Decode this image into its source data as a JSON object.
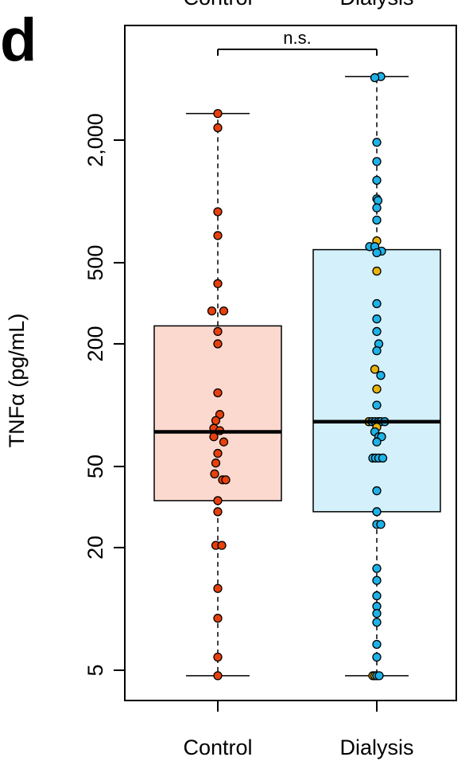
{
  "panel_label": "d",
  "top_labels": [
    "Control",
    "Dialysis"
  ],
  "colors": {
    "control_point": "#e8400c",
    "dialysis_point": "#1eb2e8",
    "dialysis_highlight": "#e8b40c",
    "control_box": "#fcd9cf",
    "dialysis_box": "#d3f0fb"
  },
  "chart_data": {
    "type": "box",
    "scale": "log",
    "ylabel": "TNFα (pg/mL)",
    "ylim": [
      3.8,
      5500
    ],
    "yticks": [
      5,
      20,
      50,
      200,
      500,
      2000
    ],
    "ytick_labels": [
      "5",
      "20",
      "50",
      "200",
      "500",
      "2,000"
    ],
    "categories": [
      "Control",
      "Dialysis"
    ],
    "significance": {
      "between": [
        "Control",
        "Dialysis"
      ],
      "label": "n.s."
    },
    "grid": false,
    "boxes": [
      {
        "name": "Control",
        "whisker_low": 4.7,
        "q1": 34,
        "median": 74,
        "q3": 245,
        "whisker_high": 2700
      },
      {
        "name": "Dialysis",
        "whisker_low": 4.7,
        "q1": 30,
        "median": 83,
        "q3": 580,
        "whisker_high": 4100
      }
    ],
    "points": {
      "Control": [
        {
          "y": 2700,
          "dx": 0
        },
        {
          "y": 2300,
          "dx": 0
        },
        {
          "y": 890,
          "dx": 0
        },
        {
          "y": 680,
          "dx": 0
        },
        {
          "y": 395,
          "dx": 0
        },
        {
          "y": 290,
          "dx": -0.15
        },
        {
          "y": 290,
          "dx": 0.15
        },
        {
          "y": 230,
          "dx": 0
        },
        {
          "y": 200,
          "dx": 0
        },
        {
          "y": 115,
          "dx": 0
        },
        {
          "y": 90,
          "dx": 0.05
        },
        {
          "y": 84,
          "dx": -0.05
        },
        {
          "y": 77,
          "dx": -0.1
        },
        {
          "y": 75,
          "dx": 0.05
        },
        {
          "y": 70,
          "dx": -0.1
        },
        {
          "y": 66,
          "dx": 0.15
        },
        {
          "y": 58,
          "dx": 0
        },
        {
          "y": 52,
          "dx": -0.05
        },
        {
          "y": 46,
          "dx": -0.08
        },
        {
          "y": 43,
          "dx": 0.12
        },
        {
          "y": 43,
          "dx": 0.2
        },
        {
          "y": 34,
          "dx": 0
        },
        {
          "y": 30,
          "dx": 0
        },
        {
          "y": 20.5,
          "dx": -0.05
        },
        {
          "y": 20.5,
          "dx": 0.1
        },
        {
          "y": 12.6,
          "dx": 0
        },
        {
          "y": 9.0,
          "dx": 0
        },
        {
          "y": 5.8,
          "dx": 0
        },
        {
          "y": 4.7,
          "dx": 0
        }
      ],
      "Dialysis": [
        {
          "y": 4100,
          "dx": 0.1
        },
        {
          "y": 4050,
          "dx": -0.05
        },
        {
          "y": 1950,
          "dx": 0
        },
        {
          "y": 1570,
          "dx": 0
        },
        {
          "y": 1270,
          "dx": 0
        },
        {
          "y": 1030,
          "dx": 0
        },
        {
          "y": 1010,
          "dx": 0.03
        },
        {
          "y": 930,
          "dx": 0
        },
        {
          "y": 810,
          "dx": 0
        },
        {
          "y": 640,
          "dx": 0,
          "highlight": true
        },
        {
          "y": 600,
          "dx": -0.18
        },
        {
          "y": 600,
          "dx": -0.05
        },
        {
          "y": 570,
          "dx": 0.12
        },
        {
          "y": 560,
          "dx": 0
        },
        {
          "y": 455,
          "dx": 0,
          "highlight": true
        },
        {
          "y": 315,
          "dx": 0
        },
        {
          "y": 265,
          "dx": 0
        },
        {
          "y": 230,
          "dx": 0
        },
        {
          "y": 200,
          "dx": 0.05
        },
        {
          "y": 185,
          "dx": 0
        },
        {
          "y": 150,
          "dx": -0.05,
          "highlight": true
        },
        {
          "y": 140,
          "dx": 0.1
        },
        {
          "y": 120,
          "dx": 0,
          "highlight": true
        },
        {
          "y": 100,
          "dx": 0
        },
        {
          "y": 83,
          "dx": -0.2,
          "highlight": true
        },
        {
          "y": 83,
          "dx": -0.12
        },
        {
          "y": 83,
          "dx": -0.04
        },
        {
          "y": 83,
          "dx": 0.04
        },
        {
          "y": 83,
          "dx": 0.1
        },
        {
          "y": 83,
          "dx": 0.2
        },
        {
          "y": 78,
          "dx": 0,
          "highlight": true
        },
        {
          "y": 74,
          "dx": -0.05
        },
        {
          "y": 70,
          "dx": 0.05
        },
        {
          "y": 70,
          "dx": 0.12
        },
        {
          "y": 66,
          "dx": 0
        },
        {
          "y": 55,
          "dx": -0.1
        },
        {
          "y": 55,
          "dx": -0.03
        },
        {
          "y": 55,
          "dx": 0.05
        },
        {
          "y": 55,
          "dx": 0.15
        },
        {
          "y": 38,
          "dx": 0
        },
        {
          "y": 30,
          "dx": 0
        },
        {
          "y": 26,
          "dx": 0
        },
        {
          "y": 26,
          "dx": 0.1
        },
        {
          "y": 15.8,
          "dx": 0
        },
        {
          "y": 13.8,
          "dx": 0
        },
        {
          "y": 11.6,
          "dx": 0
        },
        {
          "y": 10.3,
          "dx": 0
        },
        {
          "y": 9.5,
          "dx": 0
        },
        {
          "y": 8.6,
          "dx": 0
        },
        {
          "y": 6.7,
          "dx": 0
        },
        {
          "y": 5.8,
          "dx": 0
        },
        {
          "y": 4.7,
          "dx": -0.1,
          "highlight": true
        },
        {
          "y": 4.7,
          "dx": -0.05,
          "highlight": true
        },
        {
          "y": 4.7,
          "dx": 0
        },
        {
          "y": 4.7,
          "dx": 0.06
        }
      ]
    }
  }
}
